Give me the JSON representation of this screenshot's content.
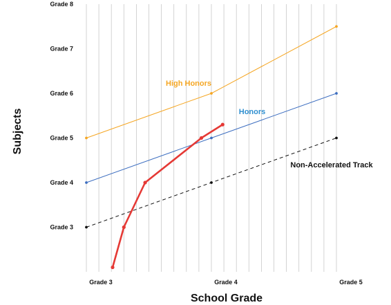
{
  "chart_data": {
    "type": "line",
    "xlabel": "School Grade",
    "ylabel": "Subjects",
    "x_ticks": [
      {
        "value": 3,
        "label": "Grade 3"
      },
      {
        "value": 4,
        "label": "Grade 4"
      },
      {
        "value": 5,
        "label": "Grade 5"
      }
    ],
    "y_ticks": [
      {
        "value": 3,
        "label": "Grade 3"
      },
      {
        "value": 4,
        "label": "Grade 4"
      },
      {
        "value": 5,
        "label": "Grade 5"
      },
      {
        "value": 6,
        "label": "Grade 6"
      },
      {
        "value": 7,
        "label": "Grade 7"
      },
      {
        "value": 8,
        "label": "Grade 8"
      }
    ],
    "xlim": [
      3,
      5
    ],
    "ylim": [
      2,
      8
    ],
    "vertical_grid_lines_per_grade": 10,
    "series": [
      {
        "name": "High Honors",
        "color": "#f5a623",
        "style": "solid",
        "points": [
          [
            3,
            5.0
          ],
          [
            4,
            6.0
          ],
          [
            5,
            7.5
          ]
        ]
      },
      {
        "name": "Honors",
        "color": "#3d6ec0",
        "style": "solid",
        "points": [
          [
            3,
            4.0
          ],
          [
            4,
            5.0
          ],
          [
            5,
            6.0
          ]
        ]
      },
      {
        "name": "Non-Accelerated Track",
        "color": "#111111",
        "style": "dashed",
        "points": [
          [
            3,
            3.0
          ],
          [
            4,
            4.0
          ],
          [
            5,
            5.0
          ]
        ]
      },
      {
        "name": "",
        "color": "#e53935",
        "style": "bold",
        "points": [
          [
            3.21,
            2.1
          ],
          [
            3.3,
            3.0
          ],
          [
            3.47,
            4.0
          ],
          [
            3.92,
            5.0
          ],
          [
            4.09,
            5.3
          ]
        ]
      }
    ]
  }
}
